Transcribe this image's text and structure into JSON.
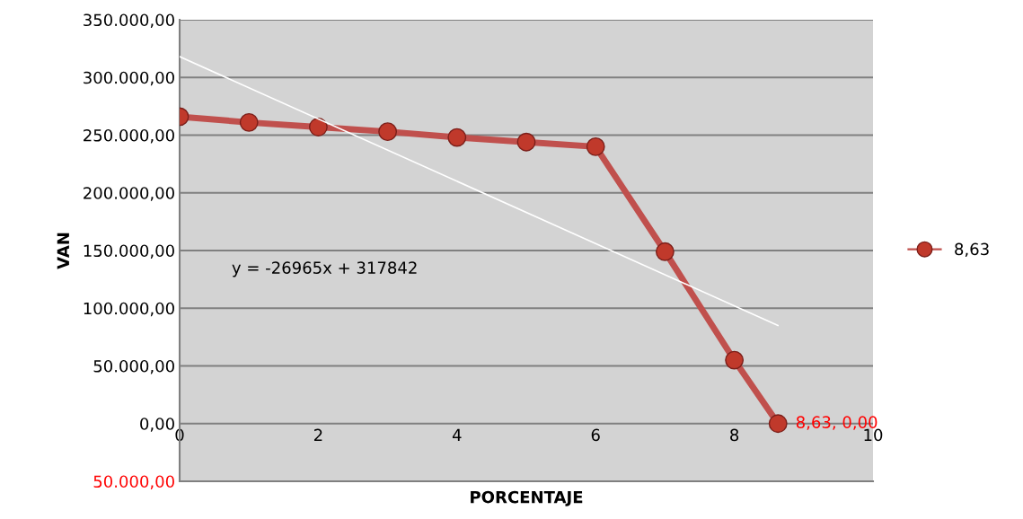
{
  "chart_data": {
    "type": "line",
    "xlabel": "PORCENTAJE",
    "ylabel": "VAN",
    "x": [
      0,
      1,
      2,
      3,
      4,
      5,
      6,
      7,
      8,
      8.63
    ],
    "series": [
      {
        "name": "8,63",
        "color": "#c0504d",
        "values": [
          266000,
          261000,
          257000,
          253000,
          248000,
          244000,
          240000,
          149000,
          55000,
          0
        ],
        "value_labels": [
          null,
          null,
          null,
          null,
          null,
          null,
          null,
          null,
          null,
          "8,63, 0,00"
        ],
        "marker": "circle"
      },
      {
        "type": "line",
        "color": "#ffffff",
        "x": [
          0,
          8.63
        ],
        "values": [
          318000,
          85000
        ],
        "marker": "none"
      }
    ],
    "annotations": [
      "y = -26965x + 317842"
    ],
    "xlim": [
      0,
      10
    ],
    "xticks": [
      0,
      2,
      4,
      6,
      8,
      10
    ],
    "ylim": [
      -50000,
      350000
    ],
    "yticks": [
      {
        "value": -50000,
        "label": "50.000,00"
      },
      {
        "value": 0,
        "label": "0,00"
      },
      {
        "value": 50000,
        "label": "50.000,00"
      },
      {
        "value": 100000,
        "label": "100.000,00"
      },
      {
        "value": 150000,
        "label": "150.000,00"
      },
      {
        "value": 200000,
        "label": "200.000,00"
      },
      {
        "value": 250000,
        "label": "250.000,00"
      },
      {
        "value": 300000,
        "label": "300.000,00"
      },
      {
        "value": 350000,
        "label": "350.000,00"
      }
    ],
    "grid": "y",
    "legend": "right",
    "line_style": "solid"
  }
}
